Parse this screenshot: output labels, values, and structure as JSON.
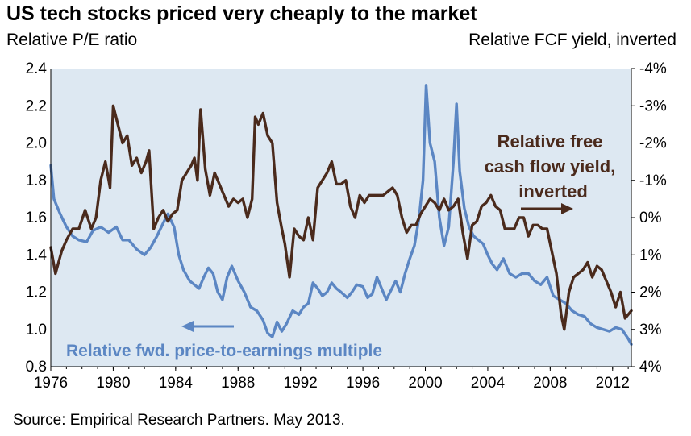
{
  "title": "US tech stocks priced very cheaply to the market",
  "left_axis_title": "Relative P/E ratio",
  "right_axis_title": "Relative FCF yield, inverted",
  "source": "Source: Empirical Research Partners. May 2013.",
  "colors": {
    "plot_bg": "#dde8f2",
    "pe_line": "#5b86c3",
    "fcf_line": "#4a2a1c"
  },
  "annotations": {
    "fcf_label": [
      "Relative free",
      "cash flow yield,",
      "inverted"
    ],
    "pe_label": "Relative fwd. price-to-earnings multiple"
  },
  "chart_data": {
    "type": "line",
    "title": "US tech stocks priced very cheaply to the market",
    "xlim": [
      1976,
      2013.2
    ],
    "x_ticks": [
      "1976",
      "1980",
      "1984",
      "1988",
      "1992",
      "1996",
      "2000",
      "2004",
      "2008",
      "2012"
    ],
    "x_tick_values": [
      1976,
      1980,
      1984,
      1988,
      1992,
      1996,
      2000,
      2004,
      2008,
      2012
    ],
    "y_left": {
      "label": "Relative P/E ratio",
      "range": [
        0.8,
        2.4
      ],
      "ticks": [
        "0.8",
        "1.0",
        "1.2",
        "1.4",
        "1.6",
        "1.8",
        "2.0",
        "2.2",
        "2.4"
      ],
      "tick_values": [
        0.8,
        1.0,
        1.2,
        1.4,
        1.6,
        1.8,
        2.0,
        2.2,
        2.4
      ]
    },
    "y_right": {
      "label": "Relative FCF yield, inverted",
      "range": [
        4,
        -4
      ],
      "inverted": true,
      "ticks": [
        "-4%",
        "-3%",
        "-2%",
        "-1%",
        "0%",
        "1%",
        "2%",
        "3%",
        "4%"
      ],
      "tick_values": [
        -4,
        -3,
        -2,
        -1,
        0,
        1,
        2,
        3,
        4
      ]
    },
    "grid": false,
    "series": [
      {
        "name": "Relative fwd. price-to-earnings multiple",
        "axis": "left",
        "x": [
          1976.0,
          1976.2,
          1976.6,
          1977.0,
          1977.4,
          1977.8,
          1978.3,
          1978.7,
          1979.2,
          1979.7,
          1980.2,
          1980.6,
          1981.0,
          1981.5,
          1982.0,
          1982.4,
          1982.8,
          1983.2,
          1983.5,
          1983.9,
          1984.2,
          1984.5,
          1984.9,
          1985.2,
          1985.5,
          1985.8,
          1986.1,
          1986.4,
          1986.7,
          1987.0,
          1987.3,
          1987.6,
          1988.0,
          1988.4,
          1988.8,
          1989.2,
          1989.6,
          1989.9,
          1990.2,
          1990.5,
          1990.8,
          1991.1,
          1991.5,
          1991.9,
          1992.2,
          1992.5,
          1992.8,
          1993.1,
          1993.4,
          1993.7,
          1994.0,
          1994.3,
          1994.6,
          1995.0,
          1995.3,
          1995.6,
          1996.0,
          1996.3,
          1996.6,
          1996.9,
          1997.2,
          1997.5,
          1997.8,
          1998.1,
          1998.4,
          1998.7,
          1999.0,
          1999.3,
          1999.6,
          1999.85,
          2000.05,
          2000.3,
          2000.6,
          2000.9,
          2001.2,
          2001.5,
          2001.8,
          2002.0,
          2002.2,
          2002.5,
          2002.8,
          2003.1,
          2003.4,
          2003.7,
          2004.0,
          2004.3,
          2004.6,
          2005.0,
          2005.4,
          2005.8,
          2006.2,
          2006.6,
          2007.0,
          2007.4,
          2007.8,
          2008.2,
          2008.6,
          2009.0,
          2009.4,
          2009.8,
          2010.2,
          2010.6,
          2011.0,
          2011.4,
          2011.8,
          2012.2,
          2012.6,
          2013.0,
          2013.2
        ],
        "values": [
          1.88,
          1.7,
          1.62,
          1.55,
          1.5,
          1.48,
          1.47,
          1.53,
          1.55,
          1.52,
          1.55,
          1.48,
          1.48,
          1.43,
          1.4,
          1.44,
          1.5,
          1.57,
          1.62,
          1.55,
          1.4,
          1.32,
          1.26,
          1.24,
          1.22,
          1.28,
          1.33,
          1.3,
          1.2,
          1.16,
          1.28,
          1.34,
          1.26,
          1.2,
          1.12,
          1.1,
          1.05,
          0.98,
          0.96,
          1.04,
          0.99,
          1.03,
          1.1,
          1.08,
          1.12,
          1.14,
          1.25,
          1.22,
          1.18,
          1.2,
          1.25,
          1.22,
          1.2,
          1.17,
          1.2,
          1.24,
          1.23,
          1.17,
          1.19,
          1.28,
          1.22,
          1.16,
          1.21,
          1.26,
          1.2,
          1.3,
          1.38,
          1.45,
          1.6,
          1.8,
          2.31,
          2.0,
          1.9,
          1.6,
          1.45,
          1.55,
          1.9,
          2.21,
          1.85,
          1.65,
          1.55,
          1.5,
          1.48,
          1.46,
          1.4,
          1.35,
          1.32,
          1.38,
          1.3,
          1.28,
          1.3,
          1.3,
          1.26,
          1.24,
          1.28,
          1.18,
          1.16,
          1.14,
          1.1,
          1.08,
          1.07,
          1.03,
          1.01,
          1.0,
          0.99,
          1.01,
          1.0,
          0.95,
          0.92
        ]
      },
      {
        "name": "Relative free cash flow yield, inverted",
        "axis": "right",
        "x": [
          1976.0,
          1976.3,
          1976.7,
          1977.0,
          1977.4,
          1977.8,
          1978.2,
          1978.6,
          1978.9,
          1979.2,
          1979.5,
          1979.8,
          1980.0,
          1980.3,
          1980.6,
          1980.9,
          1981.2,
          1981.5,
          1981.8,
          1982.1,
          1982.3,
          1982.6,
          1982.9,
          1983.2,
          1983.5,
          1983.8,
          1984.1,
          1984.4,
          1984.7,
          1985.0,
          1985.2,
          1985.4,
          1985.6,
          1985.9,
          1986.2,
          1986.5,
          1986.8,
          1987.1,
          1987.4,
          1987.7,
          1988.0,
          1988.3,
          1988.6,
          1988.9,
          1989.1,
          1989.3,
          1989.6,
          1989.9,
          1990.2,
          1990.5,
          1990.8,
          1991.0,
          1991.3,
          1991.6,
          1991.9,
          1992.2,
          1992.5,
          1992.8,
          1993.1,
          1993.4,
          1993.7,
          1994.0,
          1994.3,
          1994.6,
          1994.9,
          1995.2,
          1995.5,
          1995.8,
          1996.1,
          1996.4,
          1996.7,
          1997.0,
          1997.3,
          1997.6,
          1997.9,
          1998.2,
          1998.5,
          1998.8,
          1999.1,
          1999.4,
          1999.7,
          2000.0,
          2000.3,
          2000.6,
          2000.9,
          2001.2,
          2001.5,
          2001.8,
          2002.1,
          2002.4,
          2002.7,
          2003.0,
          2003.3,
          2003.6,
          2003.9,
          2004.2,
          2004.5,
          2004.8,
          2005.1,
          2005.4,
          2005.7,
          2006.0,
          2006.3,
          2006.6,
          2006.9,
          2007.2,
          2007.5,
          2007.8,
          2008.1,
          2008.4,
          2008.7,
          2008.9,
          2009.2,
          2009.5,
          2009.8,
          2010.1,
          2010.4,
          2010.7,
          2011.0,
          2011.3,
          2011.6,
          2011.9,
          2012.2,
          2012.5,
          2012.8,
          2013.0,
          2013.2
        ],
        "values": [
          0.8,
          1.5,
          0.9,
          0.6,
          0.3,
          0.3,
          -0.2,
          0.3,
          0.0,
          -1.0,
          -1.5,
          -0.8,
          -3.0,
          -2.5,
          -2.0,
          -2.2,
          -1.4,
          -1.6,
          -1.2,
          -1.5,
          -1.8,
          0.3,
          0.0,
          -0.2,
          0.1,
          -0.1,
          -0.2,
          -1.0,
          -1.2,
          -1.4,
          -1.6,
          -1.0,
          -2.9,
          -1.3,
          -0.6,
          -1.2,
          -0.9,
          -0.6,
          -0.3,
          -0.5,
          -0.4,
          -0.5,
          0.0,
          -0.5,
          -2.7,
          -2.5,
          -2.8,
          -2.2,
          -2.0,
          -0.4,
          0.3,
          0.7,
          1.6,
          0.3,
          0.5,
          0.6,
          0.0,
          0.6,
          -0.8,
          -1.0,
          -1.2,
          -1.5,
          -0.9,
          -0.9,
          -1.0,
          -0.3,
          0.0,
          -0.6,
          -0.4,
          -0.6,
          -0.6,
          -0.6,
          -0.6,
          -0.7,
          -0.8,
          -0.6,
          0.0,
          0.4,
          0.2,
          0.2,
          -0.1,
          -0.3,
          -0.5,
          -0.4,
          -0.2,
          -0.5,
          -0.2,
          -0.3,
          -0.5,
          0.4,
          1.1,
          0.2,
          0.1,
          -0.3,
          -0.4,
          -0.6,
          -0.3,
          -0.2,
          0.3,
          0.3,
          0.3,
          0.0,
          0.0,
          0.5,
          0.2,
          0.2,
          0.3,
          0.3,
          0.9,
          1.5,
          2.6,
          3.0,
          2.0,
          1.6,
          1.5,
          1.4,
          1.2,
          1.6,
          1.3,
          1.4,
          1.7,
          2.0,
          2.4,
          2.0,
          2.7,
          2.6,
          2.5
        ]
      }
    ],
    "legend": "none"
  }
}
